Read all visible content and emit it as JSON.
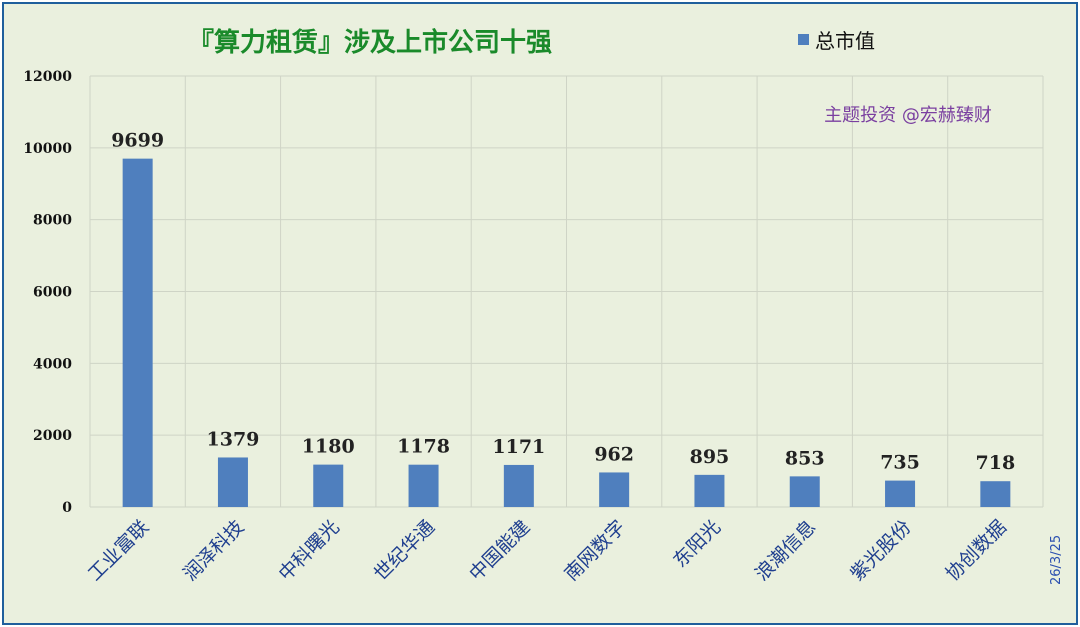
{
  "chart_data": {
    "type": "bar",
    "title": "『算力租赁』涉及上市公司十强",
    "categories": [
      "工业富联",
      "润泽科技",
      "中科曙光",
      "世纪华通",
      "中国能建",
      "南网数字",
      "东阳光",
      "浪潮信息",
      "紫光股份",
      "协创数据"
    ],
    "series": [
      {
        "name": "总市值",
        "values": [
          9699,
          1379,
          1180,
          1178,
          1171,
          962,
          895,
          853,
          735,
          718
        ]
      }
    ],
    "ylim": [
      0,
      12000
    ],
    "yticks": [
      0,
      2000,
      4000,
      6000,
      8000,
      10000,
      12000
    ],
    "xlabel": "",
    "ylabel": "",
    "grid": true,
    "legend": "top-right",
    "data_labels": true,
    "bar_color": "#4f7fbe"
  },
  "watermark": "主题投资 @宏赫臻财",
  "date": "26/3/25",
  "colors": {
    "background": "#eaf0de",
    "border": "#1f5f9c",
    "title": "#1a8a2a",
    "watermark": "#7a3fa0",
    "category_label": "#1f3f8f"
  }
}
